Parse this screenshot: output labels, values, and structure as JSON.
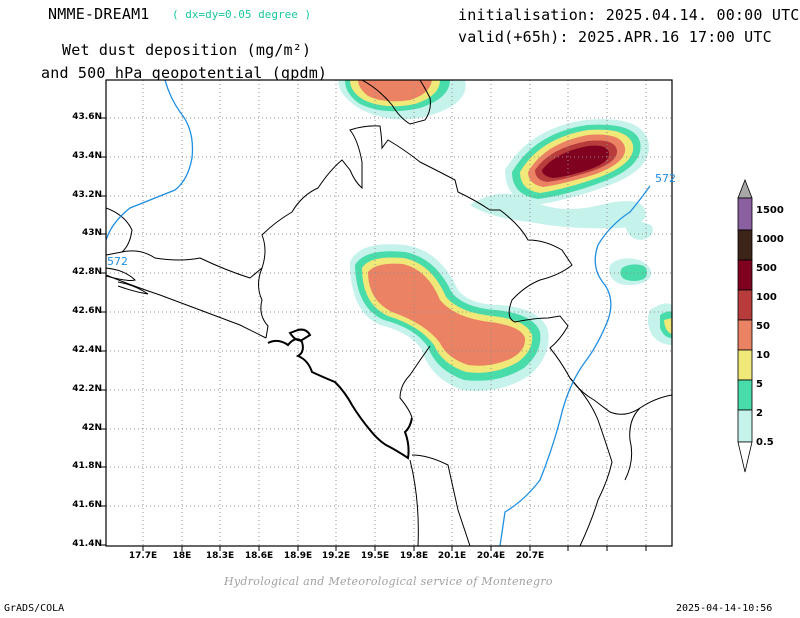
{
  "header": {
    "model_name": "NMME-DREAM1",
    "model_resolution": "( dx=dy=0.05 degree )",
    "title_line1": "Wet dust deposition (mg/m²)",
    "title_line2": "and 500 hPa geopotential (gpdm)",
    "initialisation": "initialisation: 2025.04.14. 00:00 UTC",
    "valid": "valid(+65h): 2025.APR.16 17:00 UTC"
  },
  "map": {
    "lat_ticks": [
      "43.6N",
      "43.4N",
      "43.2N",
      "43N",
      "42.8N",
      "42.6N",
      "42.4N",
      "42.2N",
      "42N",
      "41.8N",
      "41.6N",
      "41.4N"
    ],
    "lon_ticks": [
      "17.7E",
      "18E",
      "18.3E",
      "18.6E",
      "18.9E",
      "19.2E",
      "19.5E",
      "19.8E",
      "20.1E",
      "20.4E",
      "20.7E"
    ],
    "geopotential_labels": [
      "572",
      "572"
    ],
    "geopotential_color": "#1f8fe0"
  },
  "legend": {
    "levels": [
      "1500",
      "1000",
      "500",
      "100",
      "50",
      "10",
      "5",
      "2",
      "0.5"
    ],
    "colors": [
      "#8a60a0",
      "#3c2418",
      "#800020",
      "#b83c3c",
      "#ec8264",
      "#f0e878",
      "#48dcaa",
      "#c6f2ec"
    ]
  },
  "footer": {
    "credit": "Hydrological and Meteorological service of Montenegro",
    "left": "GrADS/COLA",
    "right": "2025-04-14-10:56"
  }
}
